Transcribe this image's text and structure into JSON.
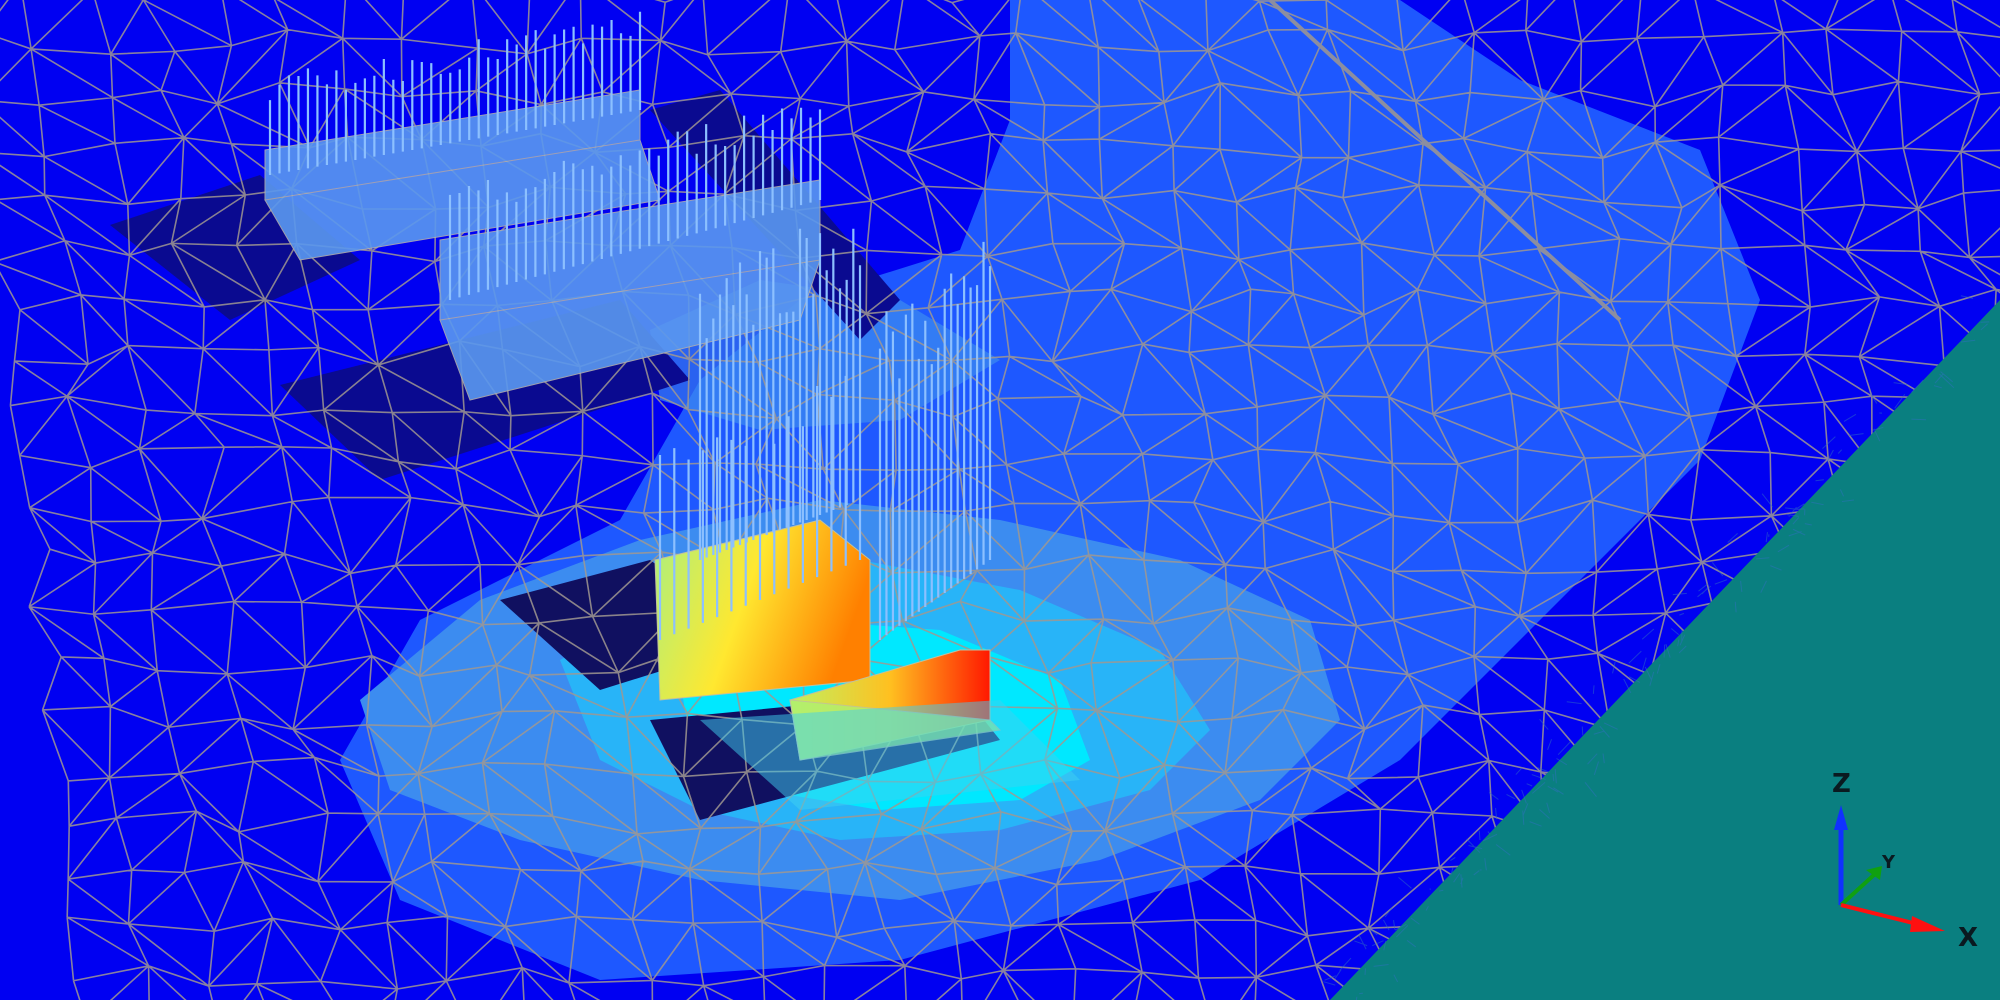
{
  "viewport": {
    "colors": {
      "background": "#0000f2",
      "contour_level_1": "#1e58ff",
      "contour_level_2": "#3c8cf0",
      "contour_level_3": "#28b4f8",
      "contour_level_4": "#00e8ff",
      "hot_low": "#b8f060",
      "hot_mid": "#ffe020",
      "hot_high": "#ff2000",
      "mesh_line": "#a09890",
      "teal_region": "#0a7f80",
      "load_arrows": "#8cc0ff"
    }
  },
  "axis_triad": {
    "z_label": "Z",
    "y_label": "Y",
    "x_label": "X",
    "z_color": "#1030ff",
    "y_color": "#10a010",
    "x_color": "#ff1010"
  }
}
